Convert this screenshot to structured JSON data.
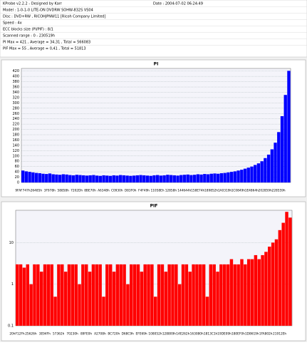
{
  "header": {
    "app_title": "KProbe v2.2.2 - Designed by Karr",
    "date": "Date : 2004-07-02 06:24:49",
    "lines": [
      "Model : 1-0-1-0 LITE-ON DVDRW SOHW-832S VS04",
      "Disc : DVD+RW , RICOHJPNW11 [Ricoh Company Limited]",
      "Speed : 4x",
      "ECC blocks size (PI/PIF) : 8/1",
      "Scanned range : 0 - 230519h",
      "PI Max = 421 , Average = 34,31 , Total = 566083",
      "PIF Max = 55 , Average = 0,41 , Total = 51813"
    ]
  },
  "chart_data": [
    {
      "type": "bar",
      "title": "PI",
      "color": "#0000ff",
      "log_scale": false,
      "grid": true,
      "xtick_labels": [
        "9FAF747h",
        "26485h",
        "3F978h",
        "58858h",
        "7202Dh",
        "8BE70h",
        "A6348h",
        "C0930h",
        "D83F0h",
        "F4F49h",
        "11058Eh",
        "12858h",
        "144644h",
        "158E74h",
        "189852h",
        "1A0319h",
        "1C0849h",
        "1E4864h",
        "202859h",
        "228559h"
      ],
      "values": [
        45,
        42,
        40,
        38,
        36,
        35,
        33,
        32,
        34,
        31,
        30,
        29,
        31,
        30,
        28,
        27,
        29,
        28,
        27,
        26,
        27,
        28,
        26,
        25,
        27,
        26,
        25,
        27,
        26,
        28,
        27,
        26,
        25,
        26,
        27,
        28,
        27,
        26,
        25,
        27,
        28,
        26,
        27,
        29,
        28,
        27,
        26,
        28,
        29,
        30,
        28,
        29,
        31,
        30,
        32,
        31,
        33,
        34,
        33,
        35,
        36,
        38,
        40,
        42,
        45,
        48,
        52,
        56,
        60,
        66,
        72,
        80,
        92,
        105,
        125,
        150,
        190,
        250,
        330,
        421
      ],
      "ylim": [
        0,
        430
      ],
      "yticks": [
        0,
        20,
        40,
        60,
        80,
        100,
        120,
        140,
        160,
        180,
        200,
        220,
        240,
        260,
        280,
        300,
        320,
        340,
        360,
        380,
        400,
        420
      ]
    },
    {
      "type": "bar",
      "title": "PIF",
      "color": "#ff0000",
      "log_scale": true,
      "grid": true,
      "xtick_labels": [
        "20hF12Fh",
        "25626h",
        "3E94Fh",
        "57362h",
        "70230h",
        "89FE0h",
        "A2708h",
        "BC720h",
        "D68C9h",
        "EFE69h",
        "108052h",
        "128809h",
        "14E262h",
        "163080h",
        "1813C1h",
        "19DE09h",
        "180EF0h",
        "1D8619h",
        "1FA802h",
        "21912Eh"
      ],
      "values": [
        3,
        3,
        2.5,
        3,
        1,
        3,
        3,
        2,
        3,
        3,
        3,
        0.5,
        3,
        3,
        2,
        3,
        3,
        3,
        1,
        3,
        3,
        2,
        3,
        3,
        3,
        0.5,
        3,
        3,
        2,
        3,
        3,
        3,
        1,
        3,
        3,
        3,
        2,
        3,
        3,
        3,
        0.5,
        3,
        3,
        2,
        3,
        3,
        3,
        1,
        3,
        3,
        2,
        3,
        3,
        3,
        3,
        0.5,
        3,
        3,
        2,
        3,
        3,
        3,
        4,
        3,
        3,
        4,
        3,
        4,
        4,
        5,
        4,
        5,
        6,
        8,
        10,
        12,
        20,
        30,
        55,
        40
      ],
      "ylim": [
        0.1,
        60
      ],
      "yticks": [
        0.1,
        1,
        10
      ]
    }
  ]
}
